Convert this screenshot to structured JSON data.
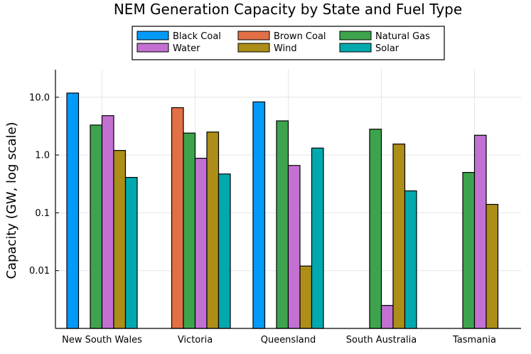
{
  "chart_data": {
    "type": "bar",
    "title": "NEM Generation Capacity by State and Fuel Type",
    "xlabel": "",
    "ylabel": "Capacity (GW, log scale)",
    "yscale": "log",
    "ylim": [
      0.001,
      30
    ],
    "yticks": [
      0.01,
      0.1,
      1.0,
      10.0
    ],
    "ytick_labels": [
      "0.01",
      "0.1",
      "1.0",
      "10.0"
    ],
    "grid": true,
    "legend_position": "top",
    "categories": [
      "New South Wales",
      "Victoria",
      "Queensland",
      "South Australia",
      "Tasmania"
    ],
    "series": [
      {
        "name": "Black Coal",
        "color": "#009af9",
        "values": [
          11.8,
          null,
          8.3,
          null,
          null
        ]
      },
      {
        "name": "Brown Coal",
        "color": "#e26f46",
        "values": [
          null,
          6.6,
          null,
          null,
          null
        ]
      },
      {
        "name": "Natural Gas",
        "color": "#3da44d",
        "values": [
          3.3,
          2.4,
          3.9,
          2.8,
          0.5
        ]
      },
      {
        "name": "Water",
        "color": "#c271d2",
        "values": [
          4.8,
          0.88,
          0.66,
          0.0025,
          2.2
        ]
      },
      {
        "name": "Wind",
        "color": "#ac8e18",
        "values": [
          1.2,
          2.5,
          0.012,
          1.55,
          0.14
        ]
      },
      {
        "name": "Solar",
        "color": "#00a9ad",
        "values": [
          0.41,
          0.47,
          1.32,
          0.24,
          null
        ]
      }
    ]
  }
}
